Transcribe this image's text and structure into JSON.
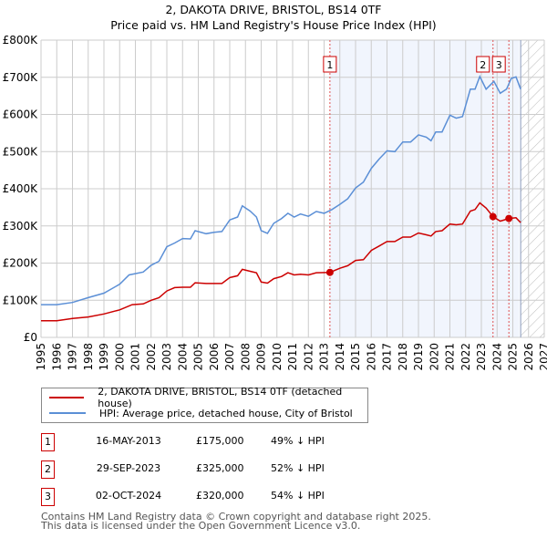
{
  "title_line1": "2, DAKOTA DRIVE, BRISTOL, BS14 0TF",
  "title_line2": "Price paid vs. HM Land Registry's House Price Index (HPI)",
  "chart_data": {
    "type": "line",
    "title": "2, DAKOTA DRIVE, BRISTOL, BS14 0TF — Price paid vs. HM Land Registry's House Price Index (HPI)",
    "xlim": [
      1995,
      2027
    ],
    "ylim": [
      0,
      800000
    ],
    "x_ticks": [
      "1995",
      "1996",
      "1997",
      "1998",
      "1999",
      "2000",
      "2001",
      "2002",
      "2003",
      "2004",
      "2005",
      "2006",
      "2007",
      "2008",
      "2009",
      "2010",
      "2011",
      "2012",
      "2013",
      "2014",
      "2015",
      "2016",
      "2017",
      "2018",
      "2019",
      "2020",
      "2021",
      "2022",
      "2023",
      "2024",
      "2025",
      "2026",
      "2027"
    ],
    "y_ticks": [
      {
        "v": 0,
        "label": "£0"
      },
      {
        "v": 100000,
        "label": "£100K"
      },
      {
        "v": 200000,
        "label": "£200K"
      },
      {
        "v": 300000,
        "label": "£300K"
      },
      {
        "v": 400000,
        "label": "£400K"
      },
      {
        "v": 500000,
        "label": "£500K"
      },
      {
        "v": 600000,
        "label": "£600K"
      },
      {
        "v": 700000,
        "label": "£700K"
      },
      {
        "v": 800000,
        "label": "£800K"
      }
    ],
    "grid": true,
    "shaded_range": [
      2013.37,
      2025.4
    ],
    "forecast_hatch_from": 2025.5,
    "series": [
      {
        "name": "2, DAKOTA DRIVE, BRISTOL, BS14 0TF (detached house)",
        "color": "#cc0000",
        "points": [
          [
            1995,
            45
          ],
          [
            1996,
            45
          ],
          [
            1997,
            51
          ],
          [
            1998,
            55
          ],
          [
            1999,
            63
          ],
          [
            2000,
            74
          ],
          [
            2000.8,
            88
          ],
          [
            2001.5,
            90
          ],
          [
            2002,
            100
          ],
          [
            2002.5,
            107
          ],
          [
            2003,
            125
          ],
          [
            2003.5,
            134
          ],
          [
            2004,
            135
          ],
          [
            2004.5,
            135
          ],
          [
            2004.8,
            147
          ],
          [
            2005.5,
            145
          ],
          [
            2006.5,
            145
          ],
          [
            2007,
            161
          ],
          [
            2007.5,
            166
          ],
          [
            2007.8,
            183
          ],
          [
            2008.3,
            178
          ],
          [
            2008.7,
            174
          ],
          [
            2009,
            149
          ],
          [
            2009.4,
            146
          ],
          [
            2009.8,
            158
          ],
          [
            2010.3,
            164
          ],
          [
            2010.7,
            174
          ],
          [
            2011.1,
            168
          ],
          [
            2011.5,
            170
          ],
          [
            2012,
            168
          ],
          [
            2012.5,
            174
          ],
          [
            2013.37,
            175
          ],
          [
            2014,
            186
          ],
          [
            2014.5,
            193
          ],
          [
            2015,
            207
          ],
          [
            2015.5,
            209
          ],
          [
            2016,
            234
          ],
          [
            2016.5,
            246
          ],
          [
            2017,
            258
          ],
          [
            2017.5,
            258
          ],
          [
            2018,
            270
          ],
          [
            2018.5,
            270
          ],
          [
            2019,
            281
          ],
          [
            2019.5,
            276
          ],
          [
            2019.8,
            273
          ],
          [
            2020.1,
            285
          ],
          [
            2020.5,
            287
          ],
          [
            2021,
            305
          ],
          [
            2021.4,
            303
          ],
          [
            2021.8,
            305
          ],
          [
            2022.3,
            340
          ],
          [
            2022.6,
            344
          ],
          [
            2022.9,
            362
          ],
          [
            2023.3,
            348
          ],
          [
            2023.74,
            325
          ],
          [
            2024.2,
            313
          ],
          [
            2024.75,
            320
          ],
          [
            2025.2,
            322
          ],
          [
            2025.5,
            309
          ]
        ]
      },
      {
        "name": "HPI: Average price, detached house, City of Bristol",
        "color": "#5b8fd6",
        "points": [
          [
            1995,
            88
          ],
          [
            1996,
            88
          ],
          [
            1997,
            94
          ],
          [
            1998,
            107
          ],
          [
            1999,
            119
          ],
          [
            2000,
            143
          ],
          [
            2000.6,
            168
          ],
          [
            2001.5,
            176
          ],
          [
            2002,
            194
          ],
          [
            2002.5,
            205
          ],
          [
            2003,
            244
          ],
          [
            2003.5,
            254
          ],
          [
            2004,
            266
          ],
          [
            2004.5,
            265
          ],
          [
            2004.8,
            287
          ],
          [
            2005.5,
            279
          ],
          [
            2006,
            283
          ],
          [
            2006.5,
            285
          ],
          [
            2007,
            316
          ],
          [
            2007.5,
            324
          ],
          [
            2007.8,
            354
          ],
          [
            2008.3,
            340
          ],
          [
            2008.7,
            324
          ],
          [
            2009,
            287
          ],
          [
            2009.4,
            280
          ],
          [
            2009.8,
            307
          ],
          [
            2010.3,
            320
          ],
          [
            2010.7,
            334
          ],
          [
            2011.1,
            324
          ],
          [
            2011.5,
            332
          ],
          [
            2012,
            326
          ],
          [
            2012.5,
            339
          ],
          [
            2013,
            334
          ],
          [
            2013.5,
            344
          ],
          [
            2014,
            358
          ],
          [
            2014.5,
            373
          ],
          [
            2015,
            402
          ],
          [
            2015.5,
            418
          ],
          [
            2016,
            455
          ],
          [
            2016.5,
            480
          ],
          [
            2017,
            502
          ],
          [
            2017.5,
            500
          ],
          [
            2018,
            526
          ],
          [
            2018.5,
            526
          ],
          [
            2019,
            545
          ],
          [
            2019.5,
            539
          ],
          [
            2019.8,
            529
          ],
          [
            2020.1,
            553
          ],
          [
            2020.5,
            553
          ],
          [
            2021,
            598
          ],
          [
            2021.4,
            590
          ],
          [
            2021.8,
            594
          ],
          [
            2022.3,
            668
          ],
          [
            2022.6,
            668
          ],
          [
            2022.9,
            702
          ],
          [
            2023.3,
            668
          ],
          [
            2023.8,
            689
          ],
          [
            2024.2,
            657
          ],
          [
            2024.6,
            668
          ],
          [
            2024.9,
            697
          ],
          [
            2025.2,
            701
          ],
          [
            2025.5,
            668
          ]
        ]
      }
    ],
    "value_unit": "thousands GBP",
    "sales": [
      {
        "label": "1",
        "x": 2013.37,
        "value": 175
      },
      {
        "label": "2",
        "x": 2023.74,
        "value": 325
      },
      {
        "label": "3",
        "x": 2024.75,
        "value": 320
      }
    ]
  },
  "legend": [
    {
      "label": "2, DAKOTA DRIVE, BRISTOL, BS14 0TF (detached house)",
      "color": "#cc0000"
    },
    {
      "label": "HPI: Average price, detached house, City of Bristol",
      "color": "#5b8fd6"
    }
  ],
  "transactions": [
    {
      "num": "1",
      "date": "16-MAY-2013",
      "price": "£175,000",
      "hpi": "49% ↓ HPI"
    },
    {
      "num": "2",
      "date": "29-SEP-2023",
      "price": "£325,000",
      "hpi": "52% ↓ HPI"
    },
    {
      "num": "3",
      "date": "02-OCT-2024",
      "price": "£320,000",
      "hpi": "54% ↓ HPI"
    }
  ],
  "footer_line1": "Contains HM Land Registry data © Crown copyright and database right 2025.",
  "footer_line2": "This data is licensed under the Open Government Licence v3.0."
}
